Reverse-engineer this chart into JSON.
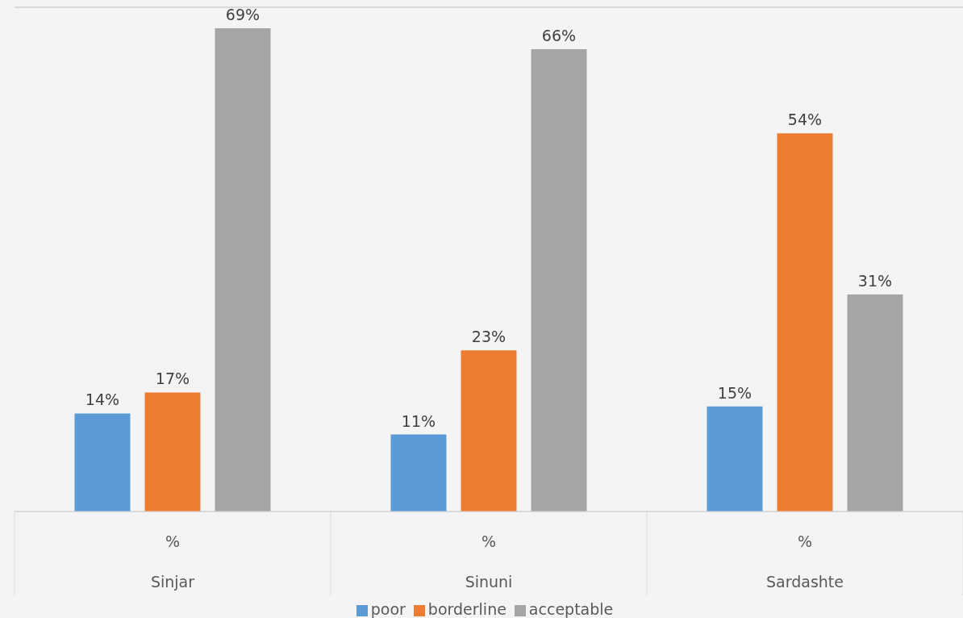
{
  "chart_data": {
    "type": "bar",
    "categories": [
      "Sinjar",
      "Sinuni",
      "Sardashte"
    ],
    "series": [
      {
        "name": "poor",
        "color": "#5b9bd5",
        "values": [
          14,
          11,
          15
        ],
        "value_labels": [
          "14%",
          "11%",
          "15%"
        ]
      },
      {
        "name": "borderline",
        "color": "#ed7d31",
        "values": [
          17,
          23,
          54
        ],
        "value_labels": [
          "17%",
          "23%",
          "54%"
        ]
      },
      {
        "name": "acceptable",
        "color": "#a5a5a5",
        "values": [
          69,
          66,
          31
        ],
        "value_labels": [
          "69%",
          "66%",
          "31%"
        ]
      }
    ],
    "tick_labels": "x",
    "grid": "y",
    "legend": "bottom",
    "annotations": [
      "%",
      "%",
      "%"
    ]
  }
}
